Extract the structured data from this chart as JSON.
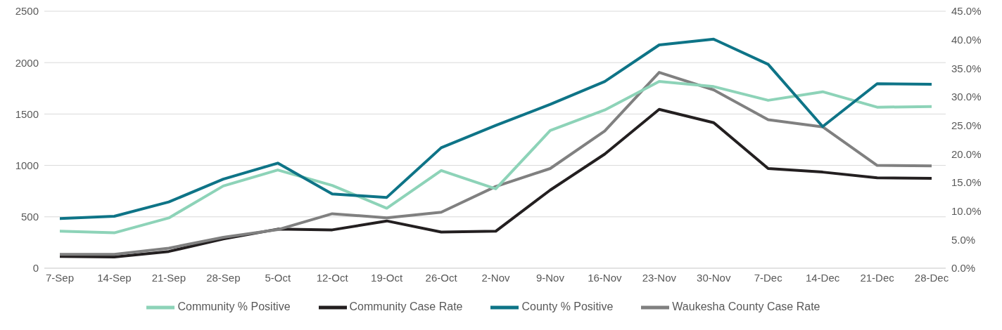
{
  "chart_data": {
    "type": "line",
    "categories": [
      "7-Sep",
      "14-Sep",
      "21-Sep",
      "28-Sep",
      "5-Oct",
      "12-Oct",
      "19-Oct",
      "26-Oct",
      "2-Nov",
      "9-Nov",
      "16-Nov",
      "23-Nov",
      "30-Nov",
      "7-Dec",
      "14-Dec",
      "21-Dec",
      "28-Dec"
    ],
    "series": [
      {
        "name": "Community Case Rate",
        "color": "#231f20",
        "values": [
          115,
          110,
          163,
          285,
          380,
          373,
          460,
          352,
          360,
          760,
          1110,
          1545,
          1416,
          970,
          935,
          880,
          875
        ]
      },
      {
        "name": "Waukesha County Case Rate",
        "color": "#808080",
        "values": [
          135,
          135,
          195,
          300,
          375,
          530,
          490,
          545,
          795,
          970,
          1335,
          1905,
          1735,
          1445,
          1375,
          1000,
          995
        ]
      },
      {
        "name": "Community % Positive",
        "color": "#8dd3b8",
        "axis": "y2",
        "values": [
          6.5,
          6.2,
          8.8,
          14.4,
          17.2,
          14.5,
          10.5,
          17.1,
          13.9,
          24.1,
          27.7,
          32.7,
          31.8,
          29.4,
          30.9,
          28.2,
          28.3
        ]
      },
      {
        "name": "County % Positive",
        "color": "#0e7487",
        "axis": "y2",
        "values": [
          8.7,
          9.1,
          11.6,
          15.6,
          18.4,
          13.0,
          12.4,
          21.1,
          25.0,
          28.7,
          32.7,
          39.1,
          40.1,
          35.7,
          24.8,
          32.3,
          32.2
        ]
      }
    ],
    "ylim": [
      0,
      2500
    ],
    "yticks": [
      0,
      500,
      1000,
      1500,
      2000,
      2500
    ],
    "y2lim": [
      0,
      45
    ],
    "y2ticks": [
      {
        "value": 0,
        "label": "0.0%"
      },
      {
        "value": 5,
        "label": "5.0%"
      },
      {
        "value": 10,
        "label": "10.0%"
      },
      {
        "value": 15,
        "label": "15.0%"
      },
      {
        "value": 20,
        "label": "20.0%"
      },
      {
        "value": 25,
        "label": "25.0%"
      },
      {
        "value": 30,
        "label": "30.0%"
      },
      {
        "value": 35,
        "label": "35.0%"
      },
      {
        "value": 40,
        "label": "40.0%"
      },
      {
        "value": 45,
        "label": "45.0%"
      }
    ],
    "grid": "y",
    "legend": "bottom",
    "marker": "none",
    "line_style": "solid"
  }
}
